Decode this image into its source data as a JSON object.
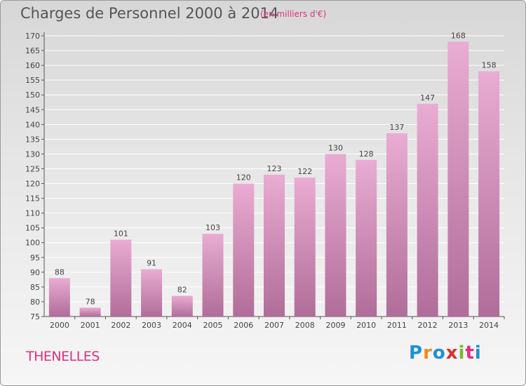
{
  "header": {
    "title": "Charges de Personnel 2000 à 2014",
    "subtitle": "(en milliers d'€)"
  },
  "footer": {
    "commune": "THENELLES",
    "logo_text": "Proxiti"
  },
  "colors": {
    "bar_top": "#e9acd2",
    "bar_bottom": "#b06d99",
    "accent": "#e0307f",
    "grid": "#ffffff"
  },
  "chart_data": {
    "type": "bar",
    "title": "Charges de Personnel 2000 à 2014",
    "subtitle": "(en milliers d'€)",
    "categories": [
      "2000",
      "2001",
      "2002",
      "2003",
      "2004",
      "2005",
      "2006",
      "2007",
      "2008",
      "2009",
      "2010",
      "2011",
      "2012",
      "2013",
      "2014"
    ],
    "values": [
      88,
      78,
      101,
      91,
      82,
      103,
      120,
      123,
      122,
      130,
      128,
      137,
      147,
      168,
      158
    ],
    "ylim": [
      75,
      170
    ],
    "yticks": [
      75,
      80,
      85,
      90,
      95,
      100,
      105,
      110,
      115,
      120,
      125,
      130,
      135,
      140,
      145,
      150,
      155,
      160,
      165,
      170
    ],
    "grid": true,
    "legend": "none"
  }
}
